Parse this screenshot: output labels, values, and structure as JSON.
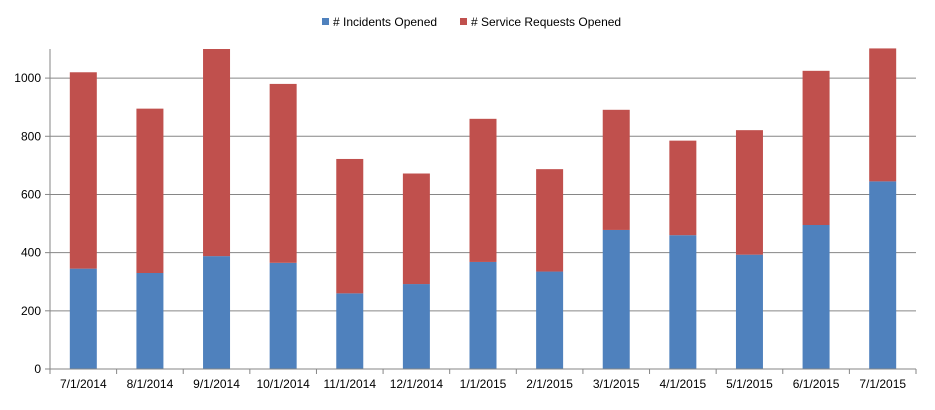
{
  "chart_data": {
    "type": "bar",
    "stacked": true,
    "categories": [
      "7/1/2014",
      "8/1/2014",
      "9/1/2014",
      "10/1/2014",
      "11/1/2014",
      "12/1/2014",
      "1/1/2015",
      "2/1/2015",
      "3/1/2015",
      "4/1/2015",
      "5/1/2015",
      "6/1/2015",
      "7/1/2015"
    ],
    "series": [
      {
        "name": "# Incidents Opened",
        "color": "#4f81bd",
        "values": [
          345,
          330,
          388,
          365,
          260,
          292,
          368,
          335,
          478,
          460,
          393,
          495,
          645
        ]
      },
      {
        "name": "# Service Requests Opened",
        "color": "#c0504d",
        "values": [
          675,
          565,
          712,
          615,
          462,
          380,
          492,
          352,
          413,
          325,
          428,
          530,
          457
        ]
      }
    ],
    "title": "",
    "xlabel": "",
    "ylabel": "",
    "ylim": [
      0,
      1100
    ],
    "yticks": [
      0,
      200,
      400,
      600,
      800,
      1000
    ],
    "grid": true,
    "legend_position": "top"
  }
}
